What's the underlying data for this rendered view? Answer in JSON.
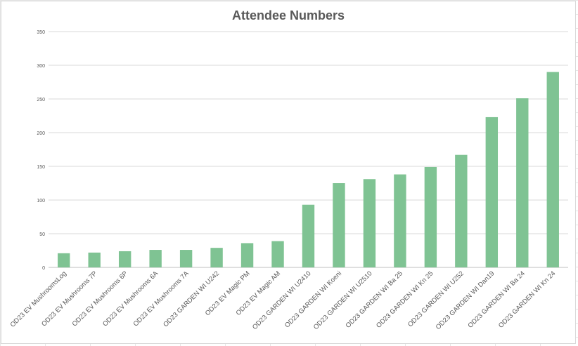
{
  "chart_data": {
    "type": "bar",
    "title": "Attendee Numbers",
    "xlabel": "",
    "ylabel": "",
    "ylim": [
      0,
      350
    ],
    "yticks": [
      0,
      50,
      100,
      150,
      200,
      250,
      300,
      350
    ],
    "grid": true,
    "legend": "none",
    "bar_color": "#7fc393",
    "categories": [
      "OD23 EV MushroomsLog",
      "OD23 EV Mushrooms 7P",
      "OD23 EV Mushrooms 6P",
      "OD23 EV Mushrooms 6A",
      "OD23 EV Mushrooms 7A",
      "OD23 GARDEN WI U242",
      "OD23 EV Magic PM",
      "OD23 EV Magic AM",
      "OD23 GARDEN WI U2410",
      "OD23 GARDEN WI Koeni",
      "OD23 GARDEN WI U2510",
      "OD23 GARDEN WI Ba 25",
      "OD23 GARDEN WI Kn 25",
      "OD23 GARDEN WI U252",
      "OD23 GARDEN WI Dan19",
      "OD23 GARDEN WI Ba 24",
      "OD23 GARDEN WI Kn 24"
    ],
    "values": [
      21,
      22,
      24,
      26,
      26,
      29,
      36,
      39,
      93,
      125,
      131,
      138,
      149,
      167,
      223,
      251,
      290
    ]
  }
}
